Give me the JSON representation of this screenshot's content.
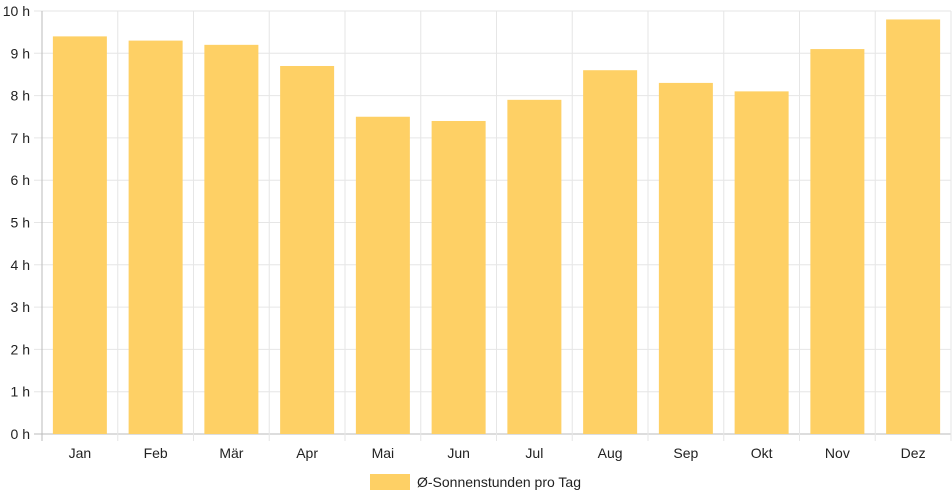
{
  "chart_data": {
    "type": "bar",
    "categories": [
      "Jan",
      "Feb",
      "Mär",
      "Apr",
      "Mai",
      "Jun",
      "Jul",
      "Aug",
      "Sep",
      "Okt",
      "Nov",
      "Dez"
    ],
    "series": [
      {
        "name": "Ø-Sonnenstunden pro Tag",
        "values": [
          9.4,
          9.3,
          9.2,
          8.7,
          7.5,
          7.4,
          7.9,
          8.6,
          8.3,
          8.1,
          9.1,
          9.8
        ],
        "color": "#fed065"
      }
    ],
    "y_ticks": [
      "0 h",
      "1 h",
      "2 h",
      "3 h",
      "4 h",
      "5 h",
      "6 h",
      "7 h",
      "8 h",
      "9 h",
      "10 h"
    ],
    "ylim": [
      0,
      10
    ],
    "title": "",
    "xlabel": "",
    "ylabel": "",
    "grid": true,
    "legend": "bottom-center",
    "colors": {
      "grid": "#e6e6e6",
      "axis": "#bbbbbb",
      "text": "#222222"
    }
  }
}
